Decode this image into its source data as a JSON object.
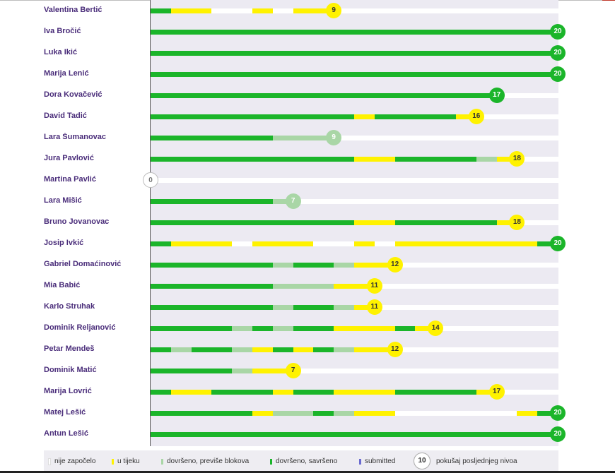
{
  "colors": {
    "green": "#1bb52a",
    "yellow": "#fff200",
    "light": "#a9d6a6",
    "white": "#ffffff",
    "submitted": "#6a6ad0"
  },
  "scale_max": 20,
  "students": [
    {
      "name": "Valentina Bertić",
      "score": 9,
      "status": "yellow",
      "levels": [
        "green",
        "yellow",
        "yellow",
        "white",
        "white",
        "yellow",
        "white",
        "yellow",
        "yellow"
      ]
    },
    {
      "name": "Iva Bročić",
      "score": 20,
      "status": "green",
      "levels": [
        "green",
        "green",
        "green",
        "green",
        "green",
        "green",
        "green",
        "green",
        "green",
        "green",
        "green",
        "green",
        "green",
        "green",
        "green",
        "green",
        "green",
        "green",
        "green",
        "green"
      ]
    },
    {
      "name": "Luka Ikić",
      "score": 20,
      "status": "green",
      "levels": [
        "green",
        "green",
        "green",
        "green",
        "green",
        "green",
        "green",
        "green",
        "green",
        "green",
        "green",
        "green",
        "green",
        "green",
        "green",
        "green",
        "green",
        "green",
        "green",
        "green"
      ]
    },
    {
      "name": "Marija Lenić",
      "score": 20,
      "status": "green",
      "levels": [
        "green",
        "green",
        "green",
        "green",
        "green",
        "green",
        "green",
        "green",
        "green",
        "green",
        "green",
        "green",
        "green",
        "green",
        "green",
        "green",
        "green",
        "green",
        "green",
        "green"
      ]
    },
    {
      "name": "Dora Kovačević",
      "score": 17,
      "status": "green",
      "levels": [
        "green",
        "green",
        "green",
        "green",
        "green",
        "green",
        "green",
        "green",
        "green",
        "green",
        "green",
        "green",
        "green",
        "green",
        "green",
        "green",
        "green"
      ]
    },
    {
      "name": "David Tadić",
      "score": 16,
      "status": "yellow",
      "levels": [
        "green",
        "green",
        "green",
        "green",
        "green",
        "green",
        "green",
        "green",
        "green",
        "green",
        "yellow",
        "green",
        "green",
        "green",
        "green",
        "yellow"
      ]
    },
    {
      "name": "Lara Šumanovac",
      "score": 9,
      "status": "light",
      "levels": [
        "green",
        "green",
        "green",
        "green",
        "green",
        "green",
        "light",
        "light",
        "light"
      ]
    },
    {
      "name": "Jura Pavlović",
      "score": 18,
      "status": "yellow",
      "levels": [
        "green",
        "green",
        "green",
        "green",
        "green",
        "green",
        "green",
        "green",
        "green",
        "green",
        "yellow",
        "yellow",
        "green",
        "green",
        "green",
        "green",
        "light",
        "yellow"
      ]
    },
    {
      "name": "Martina Pavlić",
      "score": 0,
      "status": "empty",
      "levels": []
    },
    {
      "name": "Lara Mišić",
      "score": 7,
      "status": "light",
      "levels": [
        "green",
        "green",
        "green",
        "green",
        "green",
        "green",
        "light"
      ]
    },
    {
      "name": "Bruno Jovanovac",
      "score": 18,
      "status": "yellow",
      "levels": [
        "green",
        "green",
        "green",
        "green",
        "green",
        "green",
        "green",
        "green",
        "green",
        "green",
        "yellow",
        "yellow",
        "green",
        "green",
        "green",
        "green",
        "green",
        "yellow"
      ]
    },
    {
      "name": "Josip Ivkić",
      "score": 20,
      "status": "green",
      "levels": [
        "green",
        "yellow",
        "yellow",
        "yellow",
        "white",
        "yellow",
        "yellow",
        "yellow",
        "white",
        "white",
        "yellow",
        "white",
        "yellow",
        "yellow",
        "yellow",
        "yellow",
        "yellow",
        "yellow",
        "yellow",
        "green"
      ]
    },
    {
      "name": "Gabriel Domaćinović",
      "score": 12,
      "status": "yellow",
      "levels": [
        "green",
        "green",
        "green",
        "green",
        "green",
        "green",
        "light",
        "green",
        "green",
        "light",
        "yellow",
        "yellow"
      ]
    },
    {
      "name": "Mia Babić",
      "score": 11,
      "status": "yellow",
      "levels": [
        "green",
        "green",
        "green",
        "green",
        "green",
        "green",
        "light",
        "light",
        "light",
        "yellow",
        "yellow"
      ]
    },
    {
      "name": "Karlo Struhak",
      "score": 11,
      "status": "yellow",
      "levels": [
        "green",
        "green",
        "green",
        "green",
        "green",
        "green",
        "light",
        "green",
        "green",
        "light",
        "yellow"
      ]
    },
    {
      "name": "Dominik Reljanović",
      "score": 14,
      "status": "yellow",
      "levels": [
        "green",
        "green",
        "green",
        "green",
        "light",
        "green",
        "light",
        "green",
        "green",
        "yellow",
        "yellow",
        "yellow",
        "green",
        "yellow"
      ]
    },
    {
      "name": "Petar Mendeš",
      "score": 12,
      "status": "yellow",
      "levels": [
        "green",
        "light",
        "green",
        "green",
        "light",
        "yellow",
        "green",
        "yellow",
        "green",
        "light",
        "yellow",
        "yellow"
      ]
    },
    {
      "name": "Dominik Matić",
      "score": 7,
      "status": "yellow",
      "levels": [
        "green",
        "green",
        "green",
        "green",
        "light",
        "yellow",
        "yellow"
      ]
    },
    {
      "name": "Marija Lovrić",
      "score": 17,
      "status": "yellow",
      "levels": [
        "green",
        "yellow",
        "yellow",
        "green",
        "green",
        "green",
        "yellow",
        "green",
        "green",
        "yellow",
        "yellow",
        "yellow",
        "green",
        "green",
        "green",
        "green",
        "yellow"
      ]
    },
    {
      "name": "Matej Lešić",
      "score": 20,
      "status": "green",
      "levels": [
        "green",
        "green",
        "green",
        "green",
        "green",
        "yellow",
        "light",
        "light",
        "green",
        "light",
        "yellow",
        "yellow",
        "white",
        "white",
        "white",
        "white",
        "white",
        "white",
        "yellow",
        "green"
      ]
    },
    {
      "name": "Antun Lešić",
      "score": 20,
      "status": "green",
      "levels": [
        "green",
        "green",
        "green",
        "green",
        "green",
        "green",
        "green",
        "green",
        "green",
        "green",
        "green",
        "green",
        "green",
        "green",
        "green",
        "green",
        "green",
        "green",
        "green",
        "green"
      ]
    }
  ],
  "legend": {
    "items": [
      {
        "color": "white",
        "label": "nije započelo"
      },
      {
        "color": "yellow",
        "label": "u tijeku"
      },
      {
        "color": "light",
        "label": "dovršeno, previše blokova"
      },
      {
        "color": "green",
        "label": "dovršeno, savršeno"
      },
      {
        "color": "blue",
        "label": "submitted"
      }
    ],
    "circle_value": "10",
    "circle_label": "pokušaj posljednjeg nivoa"
  }
}
